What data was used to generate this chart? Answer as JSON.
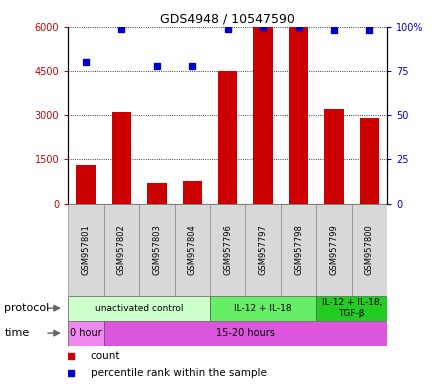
{
  "title": "GDS4948 / 10547590",
  "samples": [
    "GSM957801",
    "GSM957802",
    "GSM957803",
    "GSM957804",
    "GSM957796",
    "GSM957797",
    "GSM957798",
    "GSM957799",
    "GSM957800"
  ],
  "counts": [
    1300,
    3100,
    700,
    750,
    4500,
    6000,
    6000,
    3200,
    2900
  ],
  "percentile_ranks": [
    80,
    99,
    78,
    78,
    99,
    100,
    100,
    98,
    98
  ],
  "bar_color": "#cc0000",
  "dot_color": "#0000cc",
  "ylim_left": [
    0,
    6000
  ],
  "ylim_right": [
    0,
    100
  ],
  "yticks_left": [
    0,
    1500,
    3000,
    4500,
    6000
  ],
  "yticks_right": [
    0,
    25,
    50,
    75,
    100
  ],
  "ytick_labels_left": [
    "0",
    "1500",
    "3000",
    "4500",
    "6000"
  ],
  "ytick_labels_right": [
    "0",
    "25",
    "50",
    "75",
    "100%"
  ],
  "protocol_groups": [
    {
      "label": "unactivated control",
      "start": 0,
      "end": 4,
      "color": "#ccffcc"
    },
    {
      "label": "IL-12 + IL-18",
      "start": 4,
      "end": 7,
      "color": "#66ee66"
    },
    {
      "label": "IL-12 + IL-18,\nTGF-β",
      "start": 7,
      "end": 9,
      "color": "#22cc22"
    }
  ],
  "time_groups": [
    {
      "label": "0 hour",
      "start": 0,
      "end": 1,
      "color": "#ee88ee"
    },
    {
      "label": "15-20 hours",
      "start": 1,
      "end": 9,
      "color": "#dd55dd"
    }
  ],
  "sample_box_color": "#d8d8d8",
  "legend_count_color": "#cc0000",
  "legend_percentile_color": "#0000cc",
  "bg_color": "#ffffff",
  "protocol_label": "protocol",
  "time_label": "time"
}
